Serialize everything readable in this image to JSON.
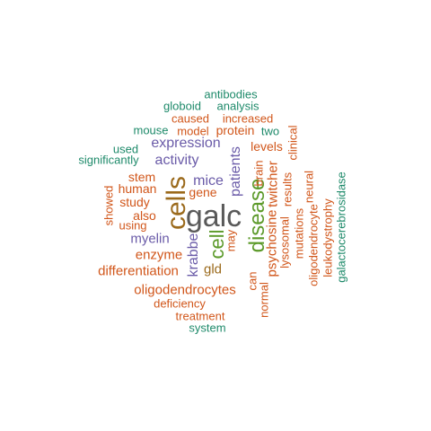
{
  "colors": {
    "gray": "#595959",
    "olive": "#9b6a1c",
    "green": "#5c9a2a",
    "purple": "#6a5ba8",
    "orange": "#d1561a",
    "teal": "#1e8a6a"
  },
  "words": {
    "galc": "galc",
    "cells": "cells",
    "disease": "disease",
    "cell": "cell",
    "mice": "mice",
    "patients": "patients",
    "expression": "expression",
    "activity": "activity",
    "krabbe": "krabbe",
    "myelin": "myelin",
    "protein": "protein",
    "gene": "gene",
    "human": "human",
    "stem": "stem",
    "study": "study",
    "also": "also",
    "using": "using",
    "showed": "showed",
    "enzyme": "enzyme",
    "differentiation": "differentiation",
    "gld": "gld",
    "oligodendrocytes": "oligodendrocytes",
    "deficiency": "deficiency",
    "treatment": "treatment",
    "system": "system",
    "caused": "caused",
    "increased": "increased",
    "model": "model",
    "two": "two",
    "mouse": "mouse",
    "used": "used",
    "significantly": "significantly",
    "globoid": "globoid",
    "analysis": "analysis",
    "antibodies": "antibodies",
    "levels": "levels",
    "brain": "brain",
    "twitcher": "twitcher",
    "psychosine": "psychosine",
    "may": "may",
    "can": "can",
    "normal": "normal",
    "lysosomal": "lysosomal",
    "results": "results",
    "clinical": "clinical",
    "mutations": "mutations",
    "oligodendrocyte": "oligodendrocyte",
    "neural": "neural",
    "leukodystrophy": "leukodystrophy",
    "galactocerebrosidase": "galactocerebrosidase"
  }
}
